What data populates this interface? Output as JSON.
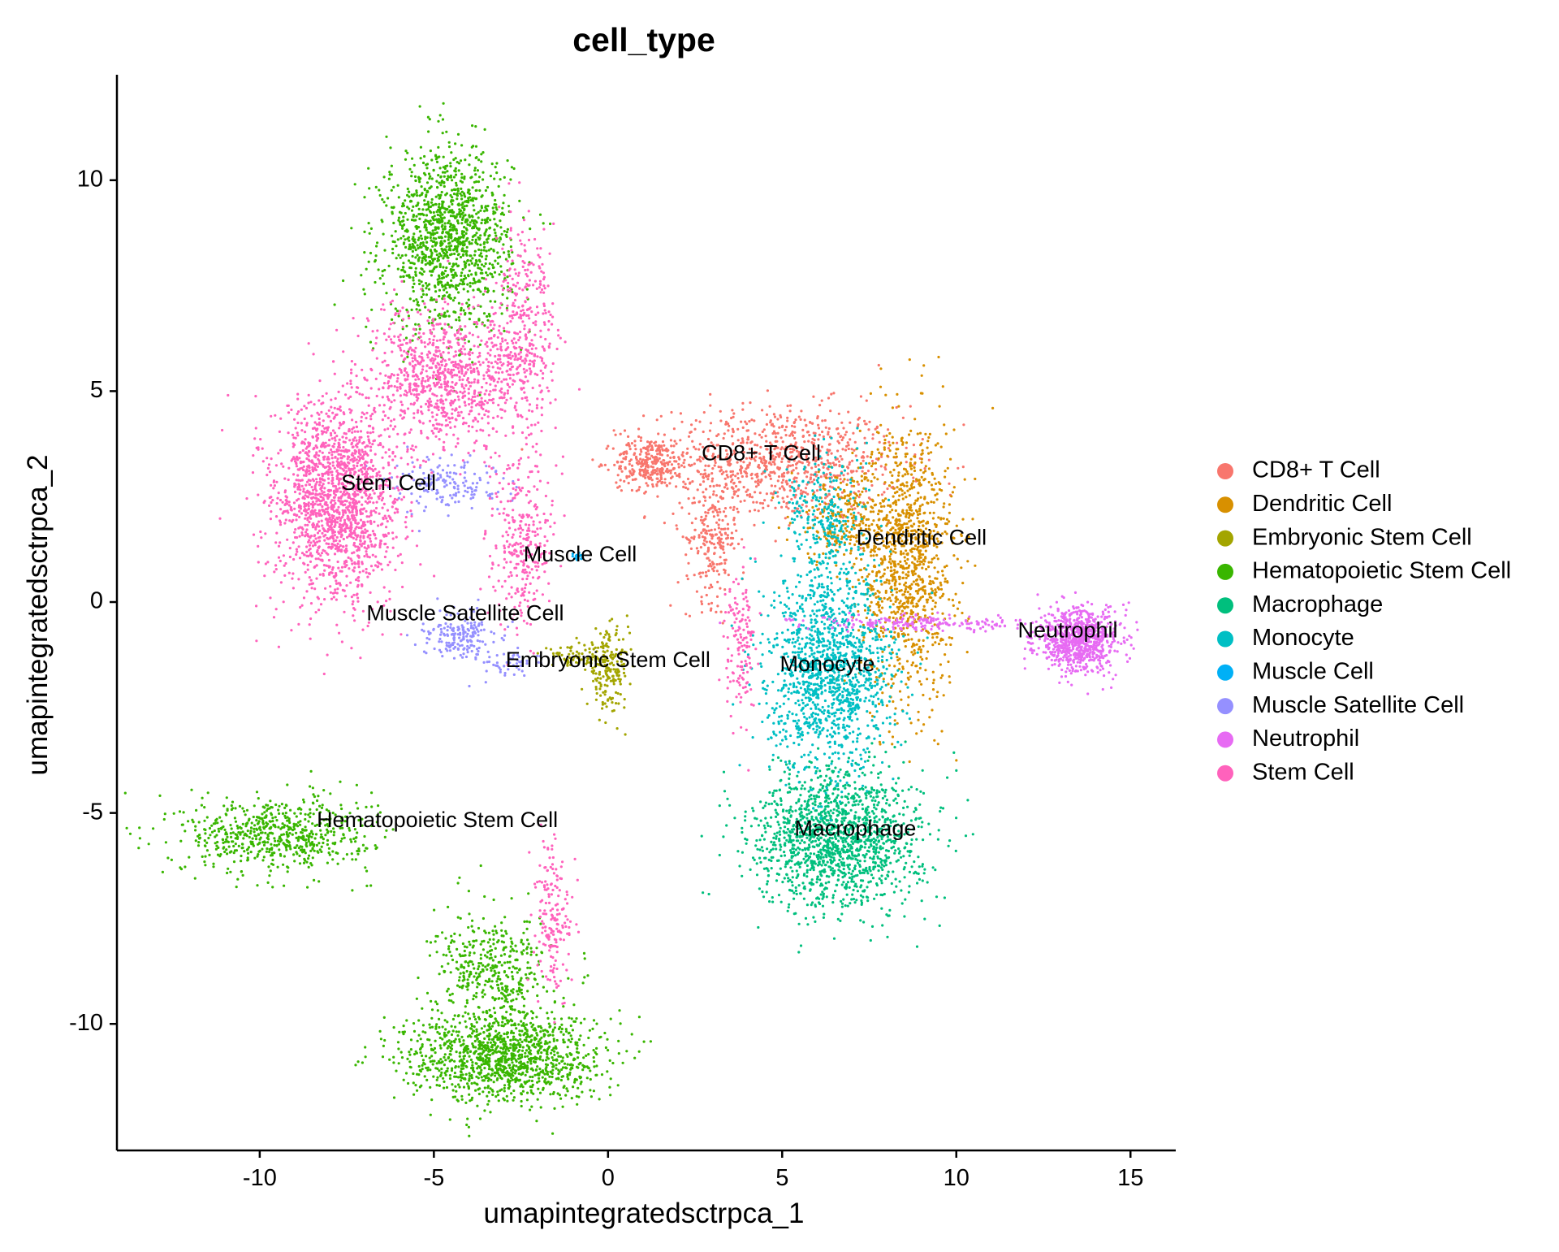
{
  "chart_data": {
    "type": "scatter",
    "title": "cell_type",
    "xlabel": "umapintegratedsctrpca_1",
    "ylabel": "umapintegratedsctrpca_2",
    "xlim": [
      -14.1,
      16.3
    ],
    "ylim": [
      -13.0,
      12.5
    ],
    "xticks": [
      -10,
      -5,
      0,
      5,
      10,
      15
    ],
    "yticks": [
      10,
      5,
      0,
      -5,
      -10
    ],
    "xtick_labels": [
      "-10",
      "-5",
      "0",
      "5",
      "10",
      "15"
    ],
    "ytick_labels": [
      "10",
      "5",
      "0",
      "-5",
      "-10"
    ],
    "grid": false,
    "legend_position": "right",
    "series": [
      {
        "name": "CD8+ T Cell",
        "color": "#F8766D",
        "clusters": [
          {
            "cx": 4.8,
            "cy": 3.3,
            "sx": 2.4,
            "sy": 0.9,
            "n": 900
          },
          {
            "cx": 1.2,
            "cy": 3.3,
            "sx": 0.7,
            "sy": 0.4,
            "n": 260
          },
          {
            "cx": 3.0,
            "cy": 1.5,
            "sx": 0.5,
            "sy": 1.0,
            "n": 220
          }
        ]
      },
      {
        "name": "Dendritic Cell",
        "color": "#D89000",
        "clusters": [
          {
            "cx": 8.6,
            "cy": 1.0,
            "sx": 0.9,
            "sy": 2.2,
            "n": 1100
          },
          {
            "cx": 6.8,
            "cy": 2.0,
            "sx": 1.0,
            "sy": 0.8,
            "n": 250
          }
        ]
      },
      {
        "name": "Embryonic Stem Cell",
        "color": "#A3A500",
        "clusters": [
          {
            "cx": 0.0,
            "cy": -1.6,
            "sx": 0.4,
            "sy": 0.6,
            "n": 200
          },
          {
            "cx": -1.0,
            "cy": -1.3,
            "sx": 0.6,
            "sy": 0.15,
            "n": 60
          }
        ]
      },
      {
        "name": "Hematopoietic Stem Cell",
        "color": "#39B600",
        "clusters": [
          {
            "cx": -4.6,
            "cy": 8.6,
            "sx": 1.2,
            "sy": 1.4,
            "n": 1300
          },
          {
            "cx": -9.5,
            "cy": -5.5,
            "sx": 1.8,
            "sy": 0.6,
            "n": 650
          },
          {
            "cx": -3.0,
            "cy": -10.8,
            "sx": 1.9,
            "sy": 0.7,
            "n": 1200
          },
          {
            "cx": -3.3,
            "cy": -8.8,
            "sx": 1.1,
            "sy": 0.9,
            "n": 450
          }
        ]
      },
      {
        "name": "Macrophage",
        "color": "#00BF7D",
        "clusters": [
          {
            "cx": 6.6,
            "cy": -5.6,
            "sx": 1.6,
            "sy": 1.1,
            "n": 1500
          }
        ]
      },
      {
        "name": "Monocyte",
        "color": "#00BFC4",
        "clusters": [
          {
            "cx": 6.4,
            "cy": -1.7,
            "sx": 1.2,
            "sy": 1.5,
            "n": 1300
          },
          {
            "cx": 6.3,
            "cy": 1.8,
            "sx": 0.8,
            "sy": 1.2,
            "n": 300
          }
        ]
      },
      {
        "name": "Muscle Cell",
        "color": "#00B0F6",
        "clusters": [
          {
            "cx": -0.9,
            "cy": 1.1,
            "sx": 0.12,
            "sy": 0.08,
            "n": 18
          }
        ]
      },
      {
        "name": "Muscle Satellite Cell",
        "color": "#9590FF",
        "clusters": [
          {
            "cx": -4.6,
            "cy": 2.8,
            "sx": 1.0,
            "sy": 0.4,
            "n": 160
          },
          {
            "cx": -4.2,
            "cy": -0.8,
            "sx": 0.7,
            "sy": 0.4,
            "n": 180
          },
          {
            "cx": -2.8,
            "cy": -1.4,
            "sx": 0.5,
            "sy": 0.2,
            "n": 50
          }
        ]
      },
      {
        "name": "Neutrophil",
        "color": "#E76BF3",
        "clusters": [
          {
            "cx": 13.5,
            "cy": -0.9,
            "sx": 0.8,
            "sy": 0.5,
            "n": 800
          },
          {
            "cx": 9.0,
            "cy": -0.5,
            "sx": 2.2,
            "sy": 0.12,
            "n": 200
          }
        ]
      },
      {
        "name": "Stem Cell",
        "color": "#FF62BC",
        "clusters": [
          {
            "cx": -7.8,
            "cy": 2.4,
            "sx": 1.2,
            "sy": 1.6,
            "n": 1700
          },
          {
            "cx": -4.6,
            "cy": 5.3,
            "sx": 1.5,
            "sy": 1.1,
            "n": 900
          },
          {
            "cx": -2.4,
            "cy": 6.5,
            "sx": 0.6,
            "sy": 1.5,
            "n": 350
          },
          {
            "cx": -2.5,
            "cy": 1.4,
            "sx": 0.6,
            "sy": 1.3,
            "n": 300
          },
          {
            "cx": -1.6,
            "cy": -7.5,
            "sx": 0.35,
            "sy": 1.3,
            "n": 180
          },
          {
            "cx": 3.8,
            "cy": -1.0,
            "sx": 0.3,
            "sy": 1.1,
            "n": 140
          }
        ]
      }
    ],
    "cluster_labels": [
      {
        "text": "CD8+ T Cell",
        "x": 4.4,
        "y": 3.5
      },
      {
        "text": "Stem Cell",
        "x": -6.3,
        "y": 2.8
      },
      {
        "text": "Dendritic Cell",
        "x": 9.0,
        "y": 1.5
      },
      {
        "text": "Muscle Cell",
        "x": -0.8,
        "y": 1.1
      },
      {
        "text": "Muscle Satellite Cell",
        "x": -4.1,
        "y": -0.3
      },
      {
        "text": "Embryonic Stem Cell",
        "x": 0.0,
        "y": -1.4
      },
      {
        "text": "Monocyte",
        "x": 6.3,
        "y": -1.5
      },
      {
        "text": "Neutrophil",
        "x": 13.2,
        "y": -0.7
      },
      {
        "text": "Hematopoietic Stem Cell",
        "x": -4.9,
        "y": -5.2
      },
      {
        "text": "Macrophage",
        "x": 7.1,
        "y": -5.4
      }
    ]
  }
}
